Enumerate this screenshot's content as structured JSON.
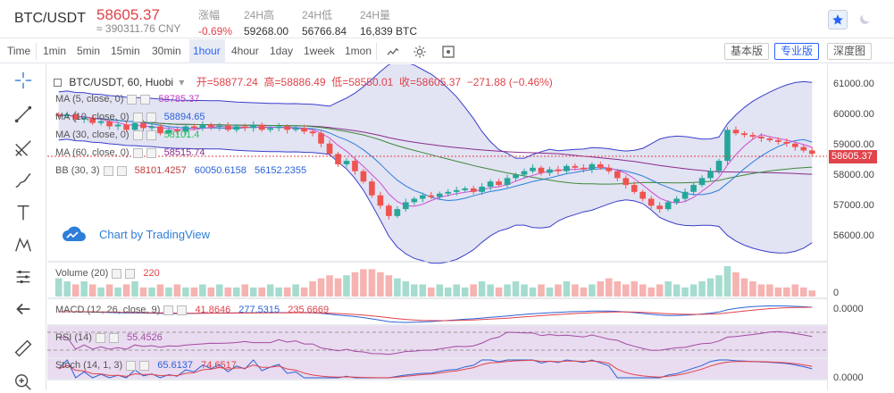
{
  "header": {
    "pair": "BTC/USDT",
    "price": "58605.37",
    "cny": "≈ 390311.76 CNY",
    "stats": [
      {
        "label": "涨幅",
        "value": "-0.69%",
        "red": true
      },
      {
        "label": "24H高",
        "value": "59268.00",
        "red": false
      },
      {
        "label": "24H低",
        "value": "56766.84",
        "red": false
      },
      {
        "label": "24H量",
        "value": "16,839 BTC",
        "red": false
      }
    ]
  },
  "toolbar": {
    "timeframes": [
      "Time",
      "1min",
      "5min",
      "15min",
      "30min",
      "1hour",
      "4hour",
      "1day",
      "1week",
      "1mon"
    ],
    "active_timeframe": "1hour",
    "modes": [
      "基本版",
      "专业版",
      "深度图"
    ],
    "active_mode": "专业版"
  },
  "legend": {
    "title": "BTC/USDT, 60, Huobi",
    "open": "开=58877.24",
    "high": "高=58886.49",
    "low": "低=58550.01",
    "close": "收=58605.37",
    "change": "−271.88 (−0.46%)"
  },
  "indicators": [
    {
      "name": "MA (5, close, 0)",
      "values": [
        "58785.37"
      ],
      "colors": [
        "#c039c0"
      ]
    },
    {
      "name": "MA (10, close, 0)",
      "values": [
        "58894.65"
      ],
      "colors": [
        "#2b62d8"
      ]
    },
    {
      "name": "MA (30, close, 0)",
      "values": [
        "58101.4"
      ],
      "colors": [
        "#25c05a"
      ]
    },
    {
      "name": "MA (60, close, 0)",
      "values": [
        "58515.74"
      ],
      "colors": [
        "#8a2d8a"
      ]
    },
    {
      "name": "BB (30, 3)",
      "values": [
        "58101.4257",
        "60050.6158",
        "56152.2355"
      ],
      "colors": [
        "#c0393b",
        "#2b62d8",
        "#2b62d8"
      ]
    }
  ],
  "tv_logo": "Chart by TradingView",
  "price_axis": [
    "61000.00",
    "60000.00",
    "59000.00",
    "58000.00",
    "57000.00",
    "56000.00"
  ],
  "current_price_tag": "58605.37",
  "volume": {
    "name": "Volume (20)",
    "value": "220",
    "axis": "0"
  },
  "macd": {
    "name": "MACD (12, 26, close, 9)",
    "values": [
      "41.8646",
      "277.5315",
      "235.6669"
    ],
    "axis": "0.0000"
  },
  "rsi": {
    "name": "RSI (14)",
    "value": "55.4526"
  },
  "stoch": {
    "name": "Stoch (14, 1, 3)",
    "values": [
      "65.6137",
      "74.6517"
    ],
    "axis": "0.0000"
  },
  "colors": {
    "up": "#26a69a",
    "down": "#ef5350",
    "bb_fill": "#e2e3f3",
    "bb_line": "#3a3fc9",
    "accent": "#2962ff"
  },
  "chart_data": {
    "type": "candlestick",
    "title": "BTC/USDT, 60, Huobi",
    "ylim": [
      55500,
      61200
    ],
    "close_series": [
      59700,
      59750,
      59600,
      59650,
      59500,
      59550,
      59400,
      59450,
      59300,
      59500,
      59350,
      59400,
      59200,
      59300,
      59250,
      59400,
      59350,
      59450,
      59380,
      59420,
      59300,
      59400,
      59350,
      59450,
      59300,
      59350,
      59400,
      59300,
      59350,
      59250,
      59200,
      58900,
      58600,
      58300,
      58400,
      58100,
      57800,
      57400,
      57100,
      56800,
      57000,
      57200,
      57300,
      57400,
      57350,
      57450,
      57500,
      57550,
      57600,
      57500,
      57650,
      57800,
      57700,
      57900,
      58000,
      58100,
      58200,
      58050,
      58150,
      58100,
      58250,
      58200,
      58150,
      58300,
      58200,
      58100,
      57900,
      57700,
      57500,
      57300,
      57100,
      57000,
      57200,
      57300,
      57500,
      57700,
      57900,
      58100,
      58400,
      59300,
      59200,
      59150,
      59100,
      59050,
      59000,
      58950,
      58900,
      58800,
      58700,
      58605
    ],
    "volume_series": [
      6,
      5,
      4,
      5,
      4,
      3,
      4,
      3,
      4,
      5,
      3,
      3,
      4,
      3,
      4,
      3,
      3,
      4,
      3,
      4,
      3,
      3,
      4,
      3,
      3,
      4,
      3,
      3,
      4,
      3,
      5,
      6,
      7,
      6,
      7,
      8,
      9,
      9,
      8,
      7,
      6,
      5,
      4,
      4,
      3,
      4,
      3,
      4,
      3,
      4,
      5,
      4,
      3,
      4,
      5,
      4,
      3,
      4,
      3,
      4,
      5,
      4,
      3,
      4,
      5,
      6,
      5,
      4,
      5,
      4,
      3,
      4,
      5,
      4,
      3,
      4,
      5,
      6,
      7,
      10,
      8,
      6,
      5,
      4,
      4,
      3,
      3,
      4,
      3,
      2
    ]
  }
}
